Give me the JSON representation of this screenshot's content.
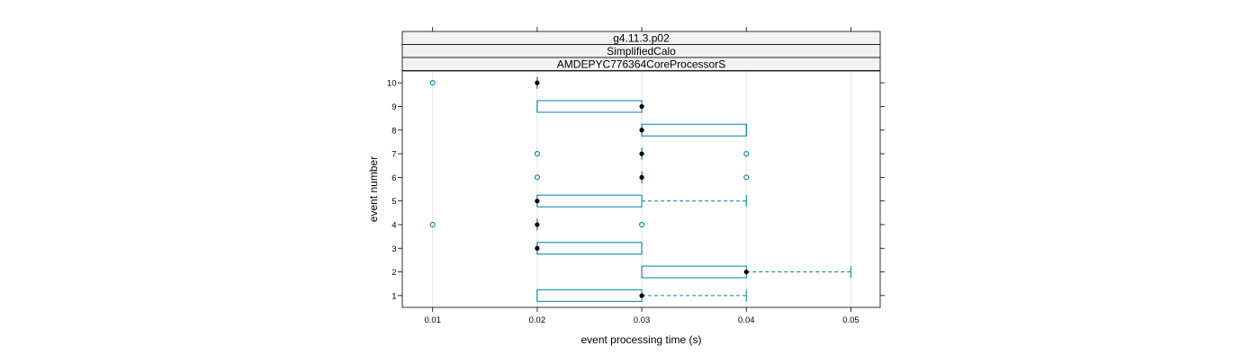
{
  "chart_data": {
    "type": "box",
    "strips": [
      "g4.11.3.p02",
      "SimplifiedCalo",
      "AMDEPYC776364CoreProcessorS"
    ],
    "xlabel": "event processing time (s)",
    "ylabel": "event number",
    "xlim": [
      0.0071,
      0.0528
    ],
    "x_ticks": [
      0.01,
      0.02,
      0.03,
      0.04,
      0.05
    ],
    "x_tick_labels": [
      "0.01",
      "0.02",
      "0.03",
      "0.04",
      "0.05"
    ],
    "categories": [
      "1",
      "2",
      "3",
      "4",
      "5",
      "6",
      "7",
      "8",
      "9",
      "10"
    ],
    "grid": true,
    "colors": {
      "box": "#0080a8",
      "median": "#000000",
      "grid": "#e6e6e6",
      "strip_bg": "#f2f2f2"
    },
    "boxes": [
      {
        "event": "1",
        "min": 0.02,
        "q1": 0.02,
        "median": 0.03,
        "q3": 0.03,
        "max": 0.04,
        "outliers": []
      },
      {
        "event": "2",
        "min": 0.03,
        "q1": 0.03,
        "median": 0.04,
        "q3": 0.04,
        "max": 0.05,
        "outliers": []
      },
      {
        "event": "3",
        "min": 0.02,
        "q1": 0.02,
        "median": 0.02,
        "q3": 0.03,
        "max": 0.03,
        "outliers": []
      },
      {
        "event": "4",
        "min": 0.02,
        "q1": 0.02,
        "median": 0.02,
        "q3": 0.02,
        "max": 0.02,
        "outliers": [
          0.01,
          0.03
        ]
      },
      {
        "event": "5",
        "min": 0.02,
        "q1": 0.02,
        "median": 0.02,
        "q3": 0.03,
        "max": 0.04,
        "outliers": []
      },
      {
        "event": "6",
        "min": 0.03,
        "q1": 0.03,
        "median": 0.03,
        "q3": 0.03,
        "max": 0.03,
        "outliers": [
          0.02,
          0.04
        ]
      },
      {
        "event": "7",
        "min": 0.03,
        "q1": 0.03,
        "median": 0.03,
        "q3": 0.03,
        "max": 0.03,
        "outliers": [
          0.02,
          0.04
        ]
      },
      {
        "event": "8",
        "min": 0.03,
        "q1": 0.03,
        "median": 0.03,
        "q3": 0.04,
        "max": 0.04,
        "outliers": []
      },
      {
        "event": "9",
        "min": 0.02,
        "q1": 0.02,
        "median": 0.03,
        "q3": 0.03,
        "max": 0.03,
        "outliers": []
      },
      {
        "event": "10",
        "min": 0.02,
        "q1": 0.02,
        "median": 0.02,
        "q3": 0.02,
        "max": 0.02,
        "outliers": [
          0.01
        ]
      }
    ]
  }
}
